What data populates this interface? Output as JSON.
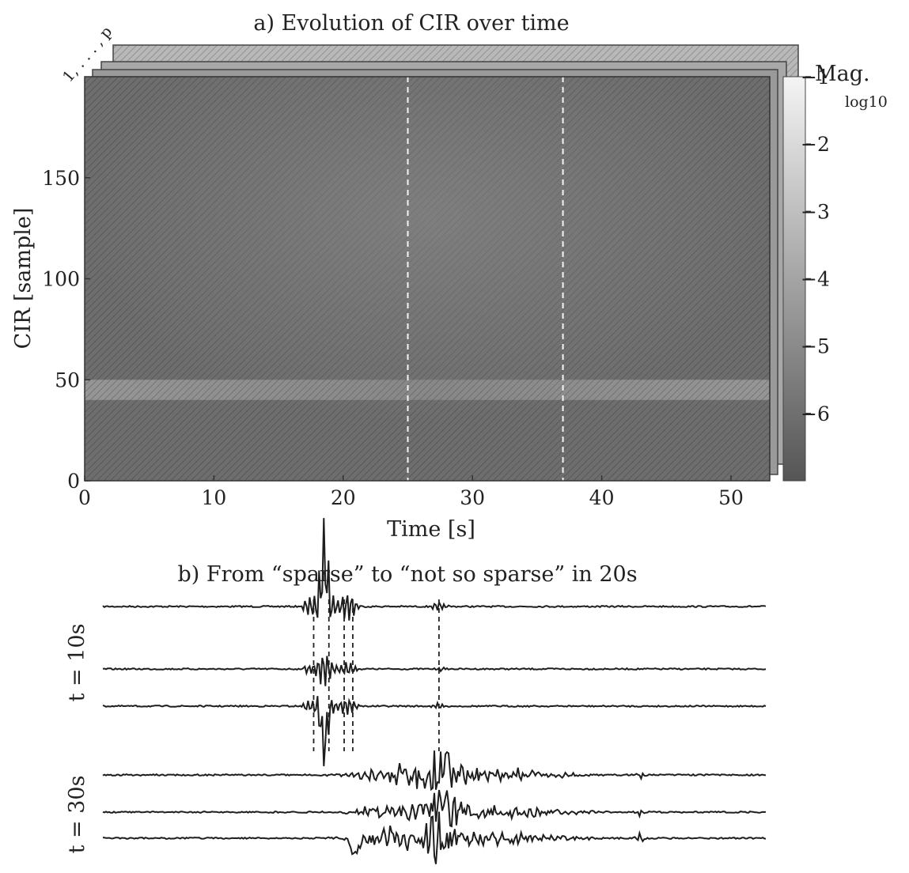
{
  "chart_data": [
    {
      "type": "heatmap",
      "title": "a) Evolution of CIR over time",
      "xlabel": "Time [s]",
      "ylabel": "CIR [sample]",
      "xlim": [
        0,
        53
      ],
      "ylim": [
        0,
        200
      ],
      "x_ticks": [
        "0",
        "10",
        "20",
        "30",
        "40",
        "50"
      ],
      "y_ticks": [
        "0",
        "50",
        "100",
        "150"
      ],
      "stack_label": "1, . . . , p",
      "colorbar": {
        "label": "Mag.",
        "sublabel": "log10",
        "range": [
          -7,
          -1
        ],
        "ticks": [
          "−1",
          "−2",
          "−3",
          "−4",
          "−5",
          "−6"
        ],
        "color_low": "#555555",
        "color_high": "#f4f4f4"
      },
      "marker_times": [
        25,
        37
      ],
      "strong_band_cir": [
        40,
        50
      ],
      "grid": false
    },
    {
      "type": "line",
      "title": "b) From “sparse” to “not so sparse” in 20s",
      "groups": [
        {
          "label": "t = 10s",
          "n_traces": 3,
          "marker_positions": [
            0.318,
            0.341,
            0.364,
            0.377,
            0.507
          ]
        },
        {
          "label": "t = 30s",
          "n_traces": 3
        }
      ]
    }
  ]
}
